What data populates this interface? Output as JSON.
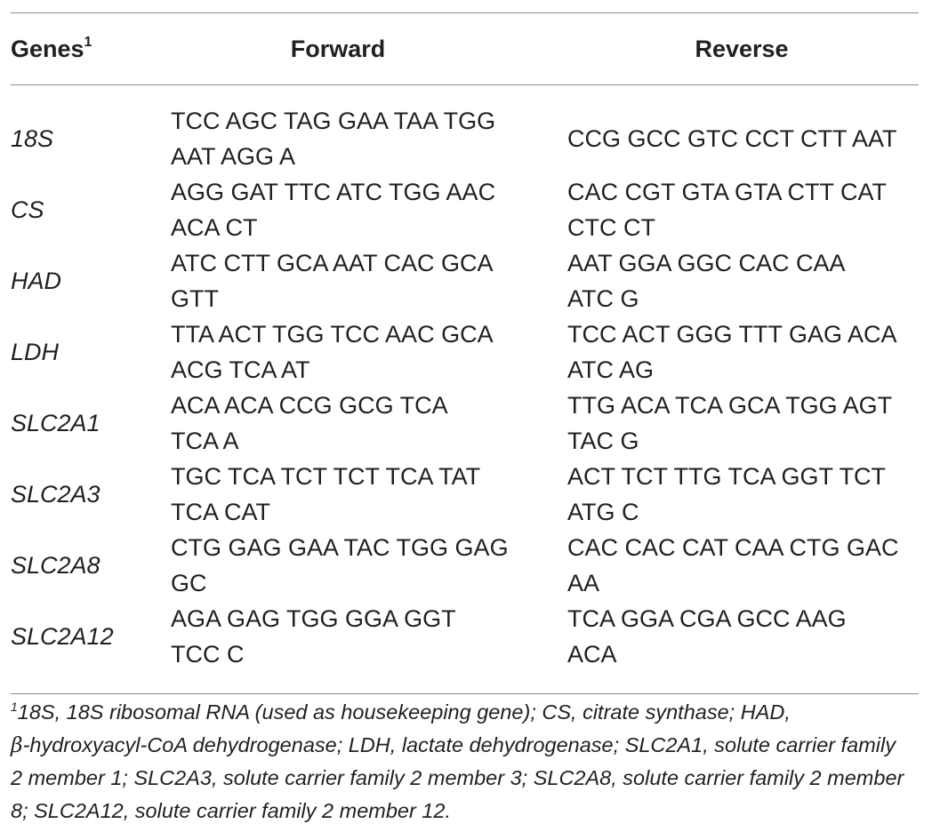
{
  "table": {
    "headers": {
      "gene": "Genes",
      "gene_sup": "1",
      "forward": "Forward",
      "reverse": "Reverse"
    },
    "rows": [
      {
        "gene": "18S",
        "forward_lines": [
          "TCC AGC TAG GAA TAA TGG",
          "AAT AGG A"
        ],
        "reverse_lines": [
          "CCG GCC GTC CCT CTT AAT"
        ]
      },
      {
        "gene": "CS",
        "forward_lines": [
          "AGG GAT TTC ATC TGG AAC",
          "ACA CT"
        ],
        "reverse_lines": [
          "CAC CGT GTA GTA CTT CAT",
          "CTC CT"
        ]
      },
      {
        "gene": "HAD",
        "forward_lines": [
          "ATC CTT GCA AAT CAC GCA",
          "GTT"
        ],
        "reverse_lines": [
          "AAT GGA GGC CAC CAA",
          "ATC G"
        ]
      },
      {
        "gene": "LDH",
        "forward_lines": [
          "TTA ACT TGG TCC AAC GCA",
          "ACG TCA AT"
        ],
        "reverse_lines": [
          "TCC ACT GGG TTT GAG ACA",
          "ATC AG"
        ]
      },
      {
        "gene": "SLC2A1",
        "forward_lines": [
          "ACA ACA CCG GCG TCA",
          "TCA A"
        ],
        "reverse_lines": [
          "TTG ACA TCA GCA TGG AGT",
          "TAC G"
        ]
      },
      {
        "gene": "SLC2A3",
        "forward_lines": [
          "TGC TCA TCT TCT TCA TAT",
          "TCA CAT"
        ],
        "reverse_lines": [
          "ACT TCT TTG TCA GGT TCT",
          "ATG C"
        ]
      },
      {
        "gene": "SLC2A8",
        "forward_lines": [
          "CTG GAG GAA TAC TGG GAG",
          "GC"
        ],
        "reverse_lines": [
          "CAC CAC CAT CAA CTG GAC",
          "AA"
        ]
      },
      {
        "gene": "SLC2A12",
        "forward_lines": [
          "AGA GAG TGG GGA GGT",
          "TCC C"
        ],
        "reverse_lines": [
          "TCA GGA CGA GCC AAG",
          "ACA"
        ]
      }
    ]
  },
  "footnote": {
    "marker": "1",
    "before_beta": "18S, 18S ribosomal RNA (used as housekeeping gene); CS, citrate synthase; HAD,",
    "beta": "β",
    "after_beta": "-hydroxyacyl-CoA dehydrogenase; LDH, lactate dehydrogenase; SLC2A1, solute carrier family 2 member 1; SLC2A3, solute carrier family 2 member 3; SLC2A8, solute carrier family 2 member 8; SLC2A12, solute carrier family 2 member 12."
  }
}
